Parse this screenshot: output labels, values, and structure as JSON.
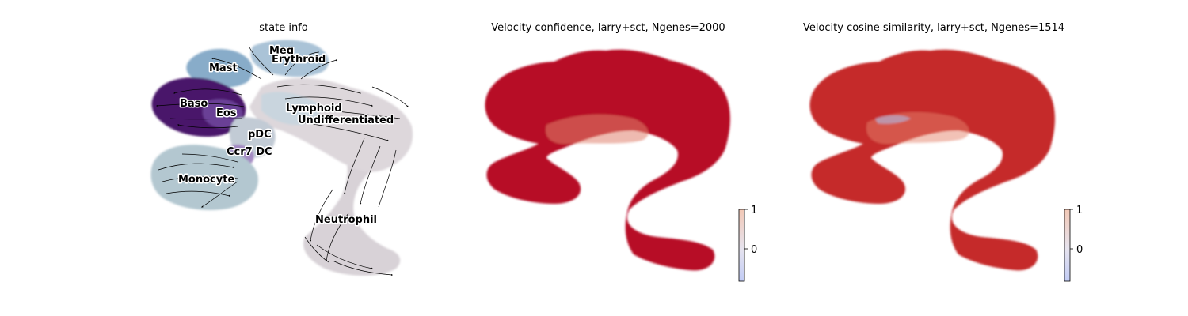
{
  "figure": {
    "panels": [
      {
        "title": "state info"
      },
      {
        "title": "Velocity confidence, larry+sct, Ngenes=2000"
      },
      {
        "title": "Velocity cosine similarity, larry+sct, Ngenes=1514"
      }
    ]
  },
  "chart_data": [
    {
      "type": "scatter",
      "title": "state info",
      "embedding": "UMAP with velocity streamlines",
      "grid": false,
      "axes_visible": false,
      "clusters": [
        {
          "name": "Meg",
          "color": "#4f7fae"
        },
        {
          "name": "Erythroid",
          "color": "#9bbad3"
        },
        {
          "name": "Mast",
          "color": "#8aaecb"
        },
        {
          "name": "Baso",
          "color": "#4a1468"
        },
        {
          "name": "Eos",
          "color": "#7a52a4"
        },
        {
          "name": "Lymphoid",
          "color": "#c8d6df"
        },
        {
          "name": "Undifferentiated",
          "color": "#dcd6da"
        },
        {
          "name": "pDC",
          "color": "#c0c9d3"
        },
        {
          "name": "Ccr7 DC",
          "color": "#9f86c0"
        },
        {
          "name": "Monocyte",
          "color": "#b1c6cf"
        },
        {
          "name": "Neutrophil",
          "color": "#d6d1d6"
        }
      ]
    },
    {
      "type": "scatter",
      "title": "Velocity confidence, larry+sct, Ngenes=2000",
      "grid": false,
      "axes_visible": false,
      "colormap": "coolwarm",
      "dominant_color": "#b70f25",
      "colorbar": {
        "ticks": [
          "1",
          "0"
        ],
        "vmax": 1,
        "vmin": -0.8
      }
    },
    {
      "type": "scatter",
      "title": "Velocity cosine similarity, larry+sct, Ngenes=1514",
      "grid": false,
      "axes_visible": false,
      "colormap": "coolwarm",
      "dominant_color": "#c5292b",
      "colorbar": {
        "ticks": [
          "1",
          "0"
        ],
        "vmax": 1,
        "vmin": -0.8
      }
    }
  ]
}
